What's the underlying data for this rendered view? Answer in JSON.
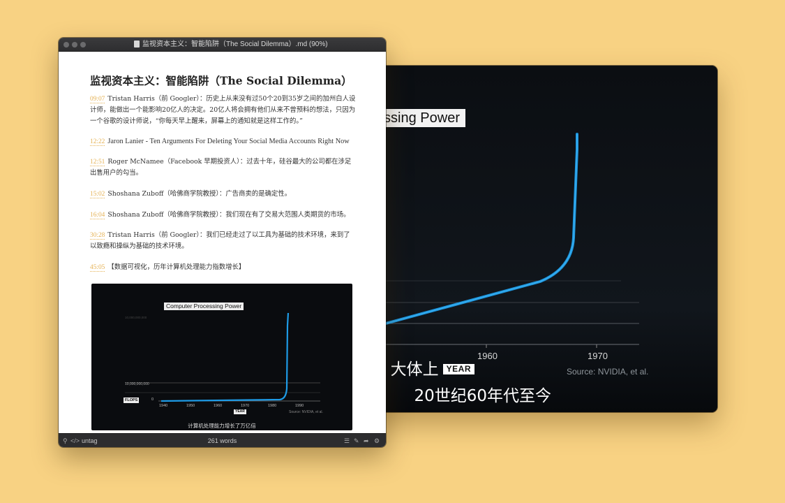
{
  "video": {
    "chart_title": "Computer Processing Power",
    "x_ticks": [
      "1960",
      "1970"
    ],
    "source": "Source: NVIDIA, et al.",
    "subtitle_line1": "大体上",
    "year_badge": "YEAR",
    "subtitle_line2": "20世纪60年代至今",
    "line_color": "#1e9be6"
  },
  "editor": {
    "window_title": "监视资本主义：智能陷阱（The Social Dilemma）.md (90%)",
    "heading": "监视资本主义：智能陷阱（The Social Dilemma）",
    "entries": [
      {
        "time": "09:07",
        "text": "Tristan Harris（前 Googler）：历史上从来没有过50个20到35岁之间的加州白人设计师，能做出一个能影响20亿人的决定。20亿人将会拥有他们从来不曾预料的想法，只因为一个谷歌的设计师说，“你每天早上醒来，屏幕上的通知就是这样工作的。”"
      },
      {
        "time": "12:22",
        "text": "Jaron Lanier - Ten Arguments For Deleting Your Social Media Accounts Right Now"
      },
      {
        "time": "12:51",
        "text": "Roger McNamee（Facebook 早期投资人）：过去十年，硅谷最大的公司都在涉足出售用户的勾当。"
      },
      {
        "time": "15:02",
        "text": "Shoshana Zuboff（哈佛商学院教授）：广告商卖的是确定性。"
      },
      {
        "time": "16:04",
        "text": "Shoshana Zuboff（哈佛商学院教授）：我们现在有了交易大范围人类期货的市场。"
      },
      {
        "time": "30:28",
        "text": "Tristan Harris（前 Googler）：我们已经走过了以工具为基础的技术环境，来到了以致瘾和操纵为基础的技术环境。"
      },
      {
        "time": "45:05",
        "text": "【数据可视化，历年计算机处理能力指数增长】"
      }
    ],
    "embed": {
      "chart_title": "Computer Processing Power",
      "flops": "FLOPS",
      "zero": "0",
      "x_ticks": [
        "1940",
        "1950",
        "1960",
        "1970",
        "1980",
        "1990"
      ],
      "year": "YEAR",
      "source": "Source: NVIDIA, et al.",
      "caption": "计算机处理能力增长了万亿倍"
    },
    "status": {
      "tag": "untag",
      "words": "261 words"
    }
  }
}
